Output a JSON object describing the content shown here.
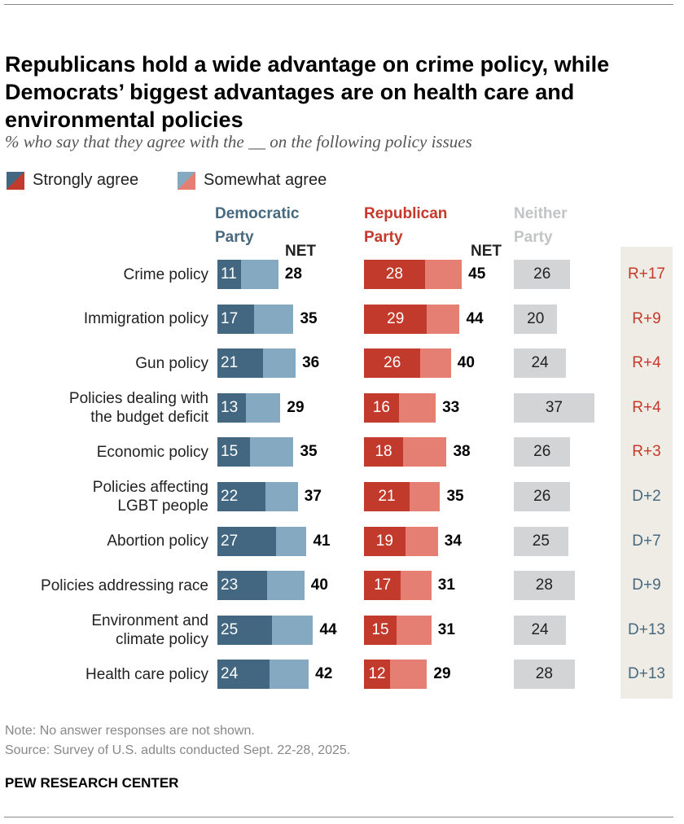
{
  "title": "Republicans hold a wide advantage on crime policy, while Democrats’ biggest advantages are on health care and environmental policies",
  "subtitle": "% who say that they agree with the __ on the following policy issues",
  "chart_data": {
    "type": "bar",
    "stacked": true,
    "legend": [
      "Strongly agree",
      "Somewhat agree"
    ],
    "legend_placement": "top-left",
    "net_label": "NET",
    "columns": [
      {
        "name": "Democratic Party",
        "color": "#47697f",
        "strong_color": "#436781",
        "somewhat_color": "#85a9c1"
      },
      {
        "name": "Republican Party",
        "color": "#c4392b",
        "strong_color": "#c13a2c",
        "somewhat_color": "#e67f73"
      },
      {
        "name": "Neither Party",
        "color": "#c3c4c5",
        "fill": "#d3d4d6"
      }
    ],
    "categories": [
      "Crime policy",
      "Immigration policy",
      "Gun policy",
      "Policies dealing with the budget deficit",
      "Economic policy",
      "Policies affecting LGBT people",
      "Abortion policy",
      "Policies addressing race",
      "Environment and climate policy",
      "Health care policy"
    ],
    "dem_strong": [
      11,
      17,
      21,
      13,
      15,
      22,
      27,
      23,
      25,
      24
    ],
    "dem_net": [
      28,
      35,
      36,
      29,
      35,
      37,
      41,
      40,
      44,
      42
    ],
    "rep_strong": [
      28,
      29,
      26,
      16,
      18,
      21,
      19,
      17,
      15,
      12
    ],
    "rep_net": [
      45,
      44,
      40,
      33,
      38,
      35,
      34,
      31,
      31,
      29
    ],
    "neither": [
      26,
      20,
      24,
      37,
      26,
      26,
      25,
      28,
      24,
      28
    ],
    "diff": [
      "R+17",
      "R+9",
      "R+4",
      "R+4",
      "R+3",
      "D+2",
      "D+7",
      "D+9",
      "D+13",
      "D+13"
    ]
  },
  "labels_lines": [
    [
      "Crime policy"
    ],
    [
      "Immigration policy"
    ],
    [
      "Gun policy"
    ],
    [
      "Policies dealing with",
      "the budget deficit"
    ],
    [
      "Economic policy"
    ],
    [
      "Policies affecting",
      "LGBT people"
    ],
    [
      "Abortion policy"
    ],
    [
      "Policies addressing race"
    ],
    [
      "Environment and",
      "climate policy"
    ],
    [
      "Health care policy"
    ]
  ],
  "header": {
    "dem": [
      "Democratic",
      "Party"
    ],
    "rep": [
      "Republican",
      "Party"
    ],
    "neither": [
      "Neither",
      "Party"
    ]
  },
  "note": "Note: No answer responses are not shown.",
  "source": "Source: Survey of U.S. adults conducted Sept. 22-28, 2025.",
  "brand": "PEW RESEARCH CENTER"
}
